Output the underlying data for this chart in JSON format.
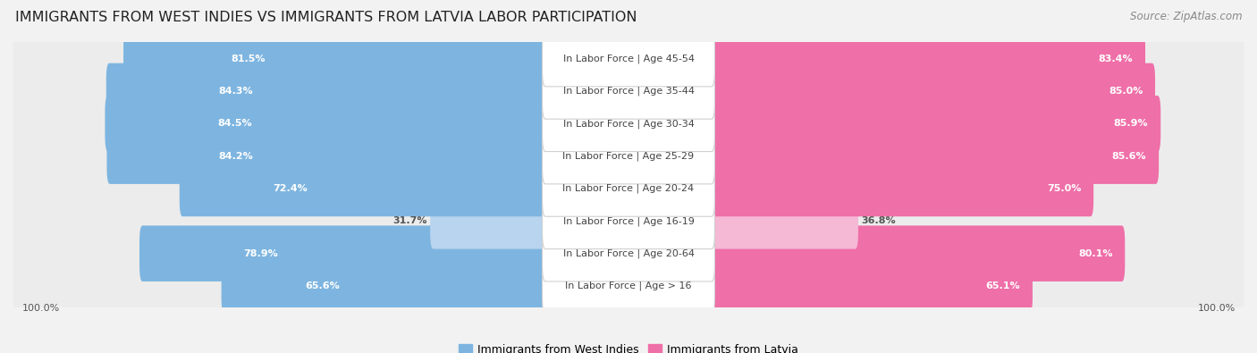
{
  "title": "IMMIGRANTS FROM WEST INDIES VS IMMIGRANTS FROM LATVIA LABOR PARTICIPATION",
  "source": "Source: ZipAtlas.com",
  "categories": [
    "In Labor Force | Age > 16",
    "In Labor Force | Age 20-64",
    "In Labor Force | Age 16-19",
    "In Labor Force | Age 20-24",
    "In Labor Force | Age 25-29",
    "In Labor Force | Age 30-34",
    "In Labor Force | Age 35-44",
    "In Labor Force | Age 45-54"
  ],
  "west_indies_values": [
    65.6,
    78.9,
    31.7,
    72.4,
    84.2,
    84.5,
    84.3,
    81.5
  ],
  "latvia_values": [
    65.1,
    80.1,
    36.8,
    75.0,
    85.6,
    85.9,
    85.0,
    83.4
  ],
  "west_indies_color": "#7EB5E0",
  "west_indies_color_light": "#B8D4EE",
  "latvia_color": "#EF6FA8",
  "latvia_color_light": "#F5B8D5",
  "row_bg_color": "#ececec",
  "background_color": "#f2f2f2",
  "max_value": 100.0,
  "legend_west_indies": "Immigrants from West Indies",
  "legend_latvia": "Immigrants from Latvia",
  "title_fontsize": 11.5,
  "label_fontsize": 8.0,
  "value_fontsize": 8.0,
  "legend_fontsize": 9,
  "source_fontsize": 8.5
}
